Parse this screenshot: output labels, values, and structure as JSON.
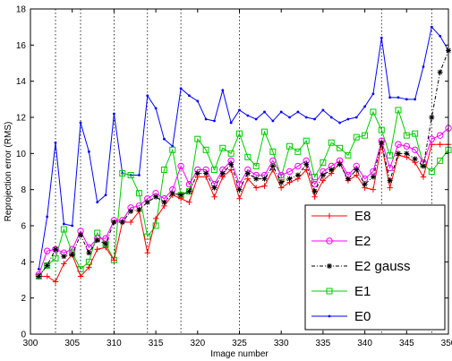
{
  "chart_data": {
    "type": "line",
    "title": "",
    "xlabel": "Image number",
    "ylabel": "Reprojection error (RMS)",
    "xlim": [
      300,
      350
    ],
    "ylim": [
      0,
      18
    ],
    "xticks": [
      300,
      305,
      310,
      315,
      320,
      325,
      330,
      335,
      340,
      345,
      350
    ],
    "yticks": [
      0,
      2,
      4,
      6,
      8,
      10,
      12,
      14,
      16,
      18
    ],
    "grid": false,
    "legend_position": "bottom-right",
    "vertical_dotted_lines": [
      303,
      306,
      310,
      314,
      318,
      325,
      342,
      348
    ],
    "x": [
      301,
      302,
      303,
      304,
      305,
      306,
      307,
      308,
      309,
      310,
      311,
      312,
      313,
      314,
      315,
      316,
      317,
      318,
      319,
      320,
      321,
      322,
      323,
      324,
      325,
      326,
      327,
      328,
      329,
      330,
      331,
      332,
      333,
      334,
      335,
      336,
      337,
      338,
      339,
      340,
      341,
      342,
      343,
      344,
      345,
      346,
      347,
      348,
      349,
      350
    ],
    "series": [
      {
        "name": "E8",
        "color": "#ff0000",
        "marker": "plus",
        "values": [
          3.2,
          3.2,
          2.9,
          3.9,
          4.4,
          3.2,
          3.7,
          4.7,
          4.8,
          4.1,
          6.2,
          6.2,
          6.8,
          4.5,
          6.4,
          7.1,
          7.7,
          7.5,
          7.3,
          8.7,
          8.7,
          7.6,
          8.7,
          9.1,
          7.5,
          8.6,
          8.1,
          8.2,
          9.1,
          8.1,
          8.4,
          8.6,
          9.1,
          7.6,
          8.5,
          8.9,
          9.5,
          8.5,
          8.8,
          8.1,
          8.0,
          10.5,
          8.1,
          9.9,
          9.8,
          9.5,
          8.7,
          10.5,
          10.5,
          10.5
        ]
      },
      {
        "name": "E2",
        "color": "#ff00ff",
        "marker": "circle",
        "values": [
          3.3,
          4.6,
          4.7,
          4.5,
          4.7,
          5.7,
          4.8,
          5.3,
          5.3,
          6.3,
          6.3,
          7.0,
          7.1,
          7.5,
          7.8,
          7.5,
          8.0,
          9.3,
          8.3,
          9.1,
          9.1,
          8.3,
          9.1,
          9.6,
          8.3,
          9.1,
          8.8,
          8.8,
          9.6,
          8.8,
          9.0,
          9.3,
          9.6,
          8.3,
          9.0,
          9.3,
          9.6,
          8.8,
          9.3,
          8.6,
          9.0,
          10.7,
          9.2,
          10.5,
          10.4,
          10.2,
          9.5,
          10.8,
          11.0,
          11.4
        ]
      },
      {
        "name": "E2 gauss",
        "color": "#000000",
        "marker": "star",
        "values": [
          3.2,
          3.8,
          4.7,
          4.3,
          4.4,
          5.5,
          4.5,
          5.2,
          5.0,
          6.2,
          6.2,
          6.8,
          6.9,
          7.3,
          7.6,
          7.3,
          7.8,
          7.7,
          7.9,
          8.9,
          8.9,
          8.1,
          8.9,
          9.4,
          8.0,
          8.9,
          8.6,
          8.6,
          9.3,
          8.4,
          8.6,
          8.8,
          9.4,
          7.9,
          8.8,
          9.1,
          9.4,
          8.6,
          9.1,
          8.3,
          8.7,
          10.6,
          8.5,
          10.0,
          10.0,
          9.7,
          9.3,
          12.0,
          14.5,
          15.7
        ]
      },
      {
        "name": "E1",
        "color": "#00cc00",
        "marker": "square",
        "values": [
          3.2,
          3.8,
          4.2,
          5.8,
          4.5,
          3.6,
          4.0,
          5.6,
          5.0,
          4.1,
          8.9,
          8.8,
          7.8,
          5.4,
          6.0,
          9.1,
          10.2,
          7.7,
          7.9,
          10.8,
          10.2,
          9.1,
          10.3,
          10.0,
          11.1,
          9.8,
          9.3,
          11.2,
          10.1,
          8.7,
          10.4,
          10.1,
          10.7,
          8.7,
          9.5,
          10.6,
          10.3,
          9.9,
          10.9,
          11.0,
          12.3,
          11.3,
          9.9,
          12.4,
          11.0,
          11.1,
          9.4,
          9.0,
          9.6,
          10.2
        ]
      },
      {
        "name": "E0",
        "color": "#0000ff",
        "marker": "dot",
        "values": [
          3.6,
          6.5,
          10.6,
          6.1,
          6.0,
          11.7,
          10.1,
          7.3,
          7.7,
          12.2,
          8.9,
          8.8,
          8.8,
          13.2,
          12.5,
          10.8,
          10.4,
          13.6,
          13.2,
          12.9,
          11.9,
          11.8,
          13.5,
          11.7,
          12.4,
          12.1,
          11.9,
          12.3,
          11.8,
          12.3,
          12.0,
          12.3,
          12.0,
          11.9,
          12.4,
          12.0,
          11.7,
          11.9,
          12.0,
          12.6,
          13.3,
          16.4,
          13.1,
          13.1,
          13.0,
          13.0,
          14.8,
          17.0,
          16.5,
          15.7
        ]
      }
    ]
  }
}
